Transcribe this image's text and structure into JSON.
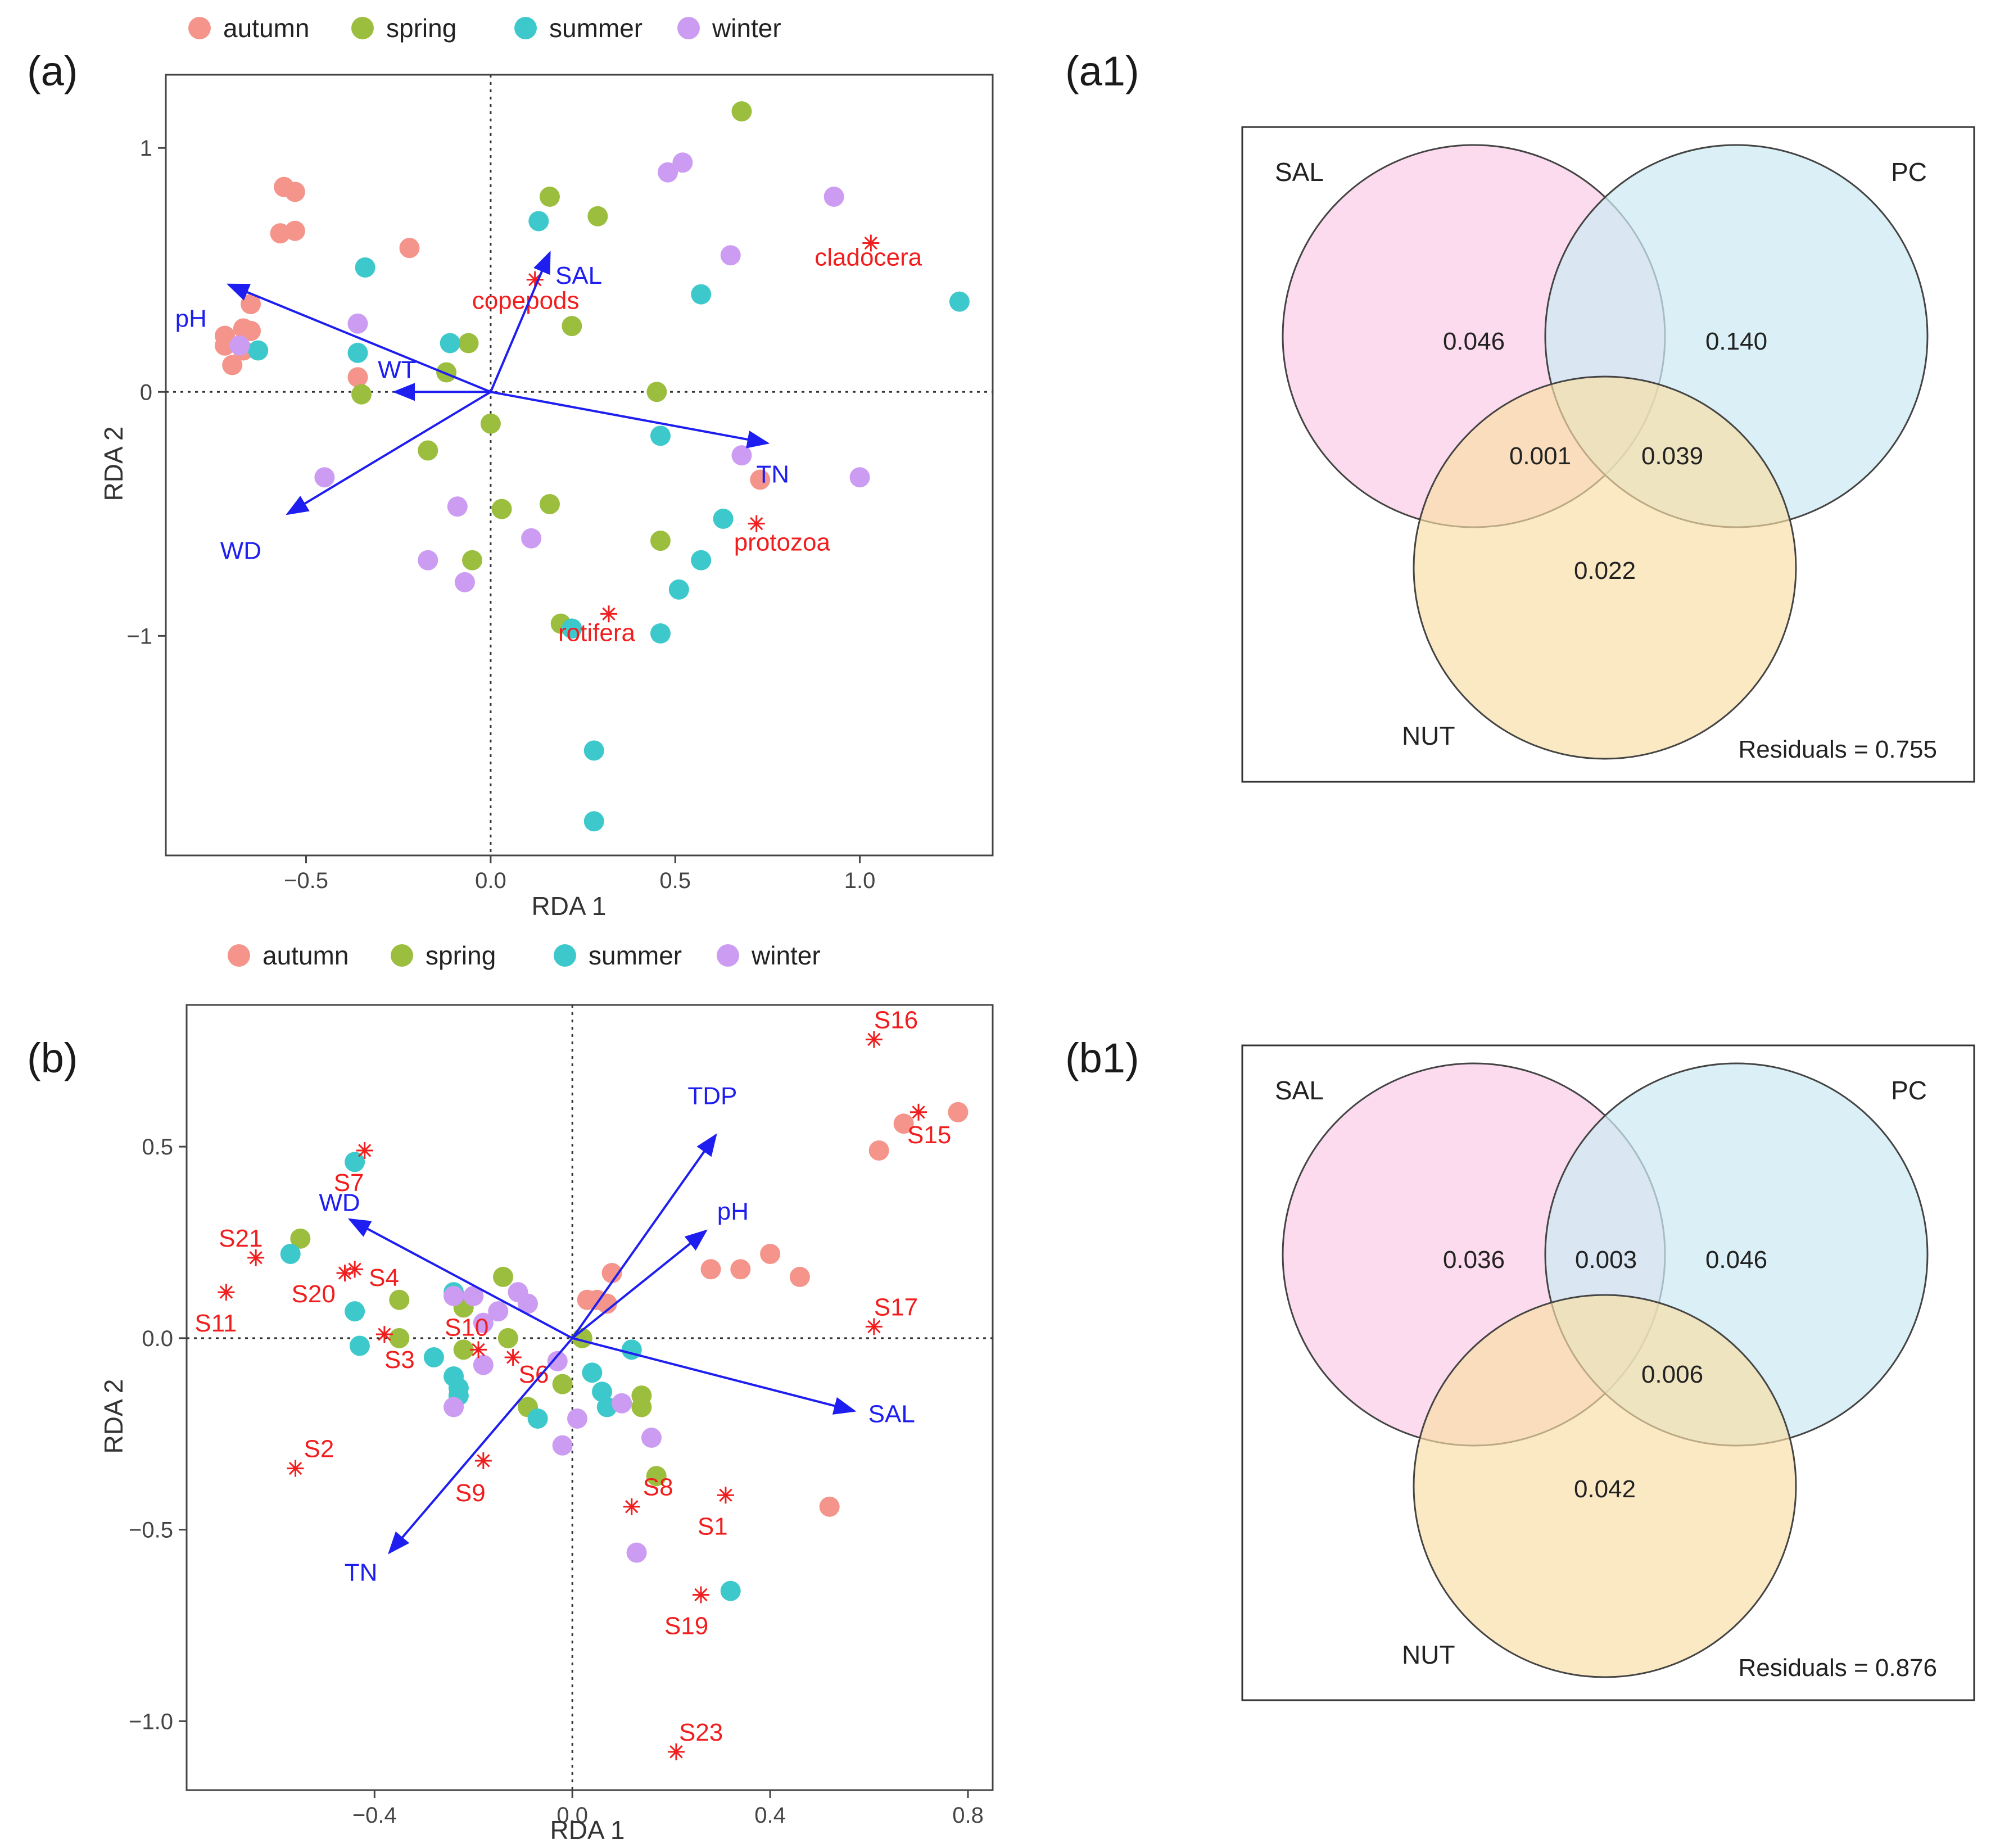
{
  "colors": {
    "autumn": "#F4948A",
    "spring": "#9CBE3E",
    "summer": "#3DC9CC",
    "winter": "#CC9CF2",
    "arrow": "#1E1EF0",
    "species": "#F01E1E",
    "sal_fill": "#F9CDE6",
    "pc_fill": "#CDEAF3",
    "nut_fill": "#F9DDA4"
  },
  "chart_data": [
    {
      "id": "a",
      "type": "scatter",
      "panel_label": "(a)",
      "xlabel": "RDA 1",
      "ylabel": "RDA 2",
      "xlim": [
        -0.88,
        1.36
      ],
      "ylim": [
        -1.9,
        1.3
      ],
      "xticks": [
        {
          "v": -0.5,
          "label": "−0.5"
        },
        {
          "v": 0.0,
          "label": "0.0"
        },
        {
          "v": 0.5,
          "label": "0.5"
        },
        {
          "v": 1.0,
          "label": "1.0"
        }
      ],
      "yticks": [
        {
          "v": 1,
          "label": "1"
        },
        {
          "v": 0,
          "label": "0"
        },
        {
          "v": -1,
          "label": "−1"
        }
      ],
      "legend": [
        "autumn",
        "spring",
        "summer",
        "winter"
      ],
      "points": [
        {
          "s": "autumn",
          "x": -0.56,
          "y": 0.84
        },
        {
          "s": "autumn",
          "x": -0.53,
          "y": 0.82
        },
        {
          "s": "autumn",
          "x": -0.57,
          "y": 0.65
        },
        {
          "s": "autumn",
          "x": -0.53,
          "y": 0.66
        },
        {
          "s": "autumn",
          "x": -0.22,
          "y": 0.59
        },
        {
          "s": "autumn",
          "x": -0.65,
          "y": 0.36
        },
        {
          "s": "autumn",
          "x": -0.67,
          "y": 0.26
        },
        {
          "s": "autumn",
          "x": -0.65,
          "y": 0.25
        },
        {
          "s": "autumn",
          "x": -0.72,
          "y": 0.23
        },
        {
          "s": "autumn",
          "x": -0.72,
          "y": 0.19
        },
        {
          "s": "autumn",
          "x": -0.67,
          "y": 0.17
        },
        {
          "s": "autumn",
          "x": -0.7,
          "y": 0.11
        },
        {
          "s": "autumn",
          "x": -0.36,
          "y": 0.06
        },
        {
          "s": "autumn",
          "x": 0.73,
          "y": -0.36
        },
        {
          "s": "spring",
          "x": 0.68,
          "y": 1.15
        },
        {
          "s": "spring",
          "x": 0.16,
          "y": 0.8
        },
        {
          "s": "spring",
          "x": 0.29,
          "y": 0.72
        },
        {
          "s": "spring",
          "x": -0.06,
          "y": 0.2
        },
        {
          "s": "spring",
          "x": 0.22,
          "y": 0.27
        },
        {
          "s": "spring",
          "x": -0.12,
          "y": 0.08
        },
        {
          "s": "spring",
          "x": -0.35,
          "y": -0.01
        },
        {
          "s": "spring",
          "x": 0.45,
          "y": 0.0
        },
        {
          "s": "spring",
          "x": 0.0,
          "y": -0.13
        },
        {
          "s": "spring",
          "x": -0.17,
          "y": -0.24
        },
        {
          "s": "spring",
          "x": 0.03,
          "y": -0.48
        },
        {
          "s": "spring",
          "x": 0.16,
          "y": -0.46
        },
        {
          "s": "spring",
          "x": 0.46,
          "y": -0.61
        },
        {
          "s": "spring",
          "x": -0.05,
          "y": -0.69
        },
        {
          "s": "spring",
          "x": 0.19,
          "y": -0.95
        },
        {
          "s": "summer",
          "x": -0.34,
          "y": 0.51
        },
        {
          "s": "summer",
          "x": 0.13,
          "y": 0.7
        },
        {
          "s": "summer",
          "x": 0.57,
          "y": 0.4
        },
        {
          "s": "summer",
          "x": 1.27,
          "y": 0.37
        },
        {
          "s": "summer",
          "x": -0.63,
          "y": 0.17
        },
        {
          "s": "summer",
          "x": -0.36,
          "y": 0.16
        },
        {
          "s": "summer",
          "x": -0.11,
          "y": 0.2
        },
        {
          "s": "summer",
          "x": 0.46,
          "y": -0.18
        },
        {
          "s": "summer",
          "x": 0.63,
          "y": -0.52
        },
        {
          "s": "summer",
          "x": 0.57,
          "y": -0.69
        },
        {
          "s": "summer",
          "x": 0.51,
          "y": -0.81
        },
        {
          "s": "summer",
          "x": 0.46,
          "y": -0.99
        },
        {
          "s": "summer",
          "x": 0.22,
          "y": -0.97
        },
        {
          "s": "summer",
          "x": 0.28,
          "y": -1.47
        },
        {
          "s": "summer",
          "x": 0.28,
          "y": -1.76
        },
        {
          "s": "winter",
          "x": 0.52,
          "y": 0.94
        },
        {
          "s": "winter",
          "x": 0.48,
          "y": 0.9
        },
        {
          "s": "winter",
          "x": 0.93,
          "y": 0.8
        },
        {
          "s": "winter",
          "x": 0.65,
          "y": 0.56
        },
        {
          "s": "winter",
          "x": -0.36,
          "y": 0.28
        },
        {
          "s": "winter",
          "x": -0.68,
          "y": 0.19
        },
        {
          "s": "winter",
          "x": 0.68,
          "y": -0.26
        },
        {
          "s": "winter",
          "x": 1.0,
          "y": -0.35
        },
        {
          "s": "winter",
          "x": -0.45,
          "y": -0.35
        },
        {
          "s": "winter",
          "x": -0.09,
          "y": -0.47
        },
        {
          "s": "winter",
          "x": 0.11,
          "y": -0.6
        },
        {
          "s": "winter",
          "x": -0.17,
          "y": -0.69
        },
        {
          "s": "winter",
          "x": -0.07,
          "y": -0.78
        }
      ],
      "arrows": [
        {
          "label": "SAL",
          "x": 0.16,
          "y": 0.57
        },
        {
          "label": "pH",
          "x": -0.71,
          "y": 0.44
        },
        {
          "label": "WT",
          "x": -0.26,
          "y": 0.0
        },
        {
          "label": "TN",
          "x": 0.75,
          "y": -0.21
        },
        {
          "label": "WD",
          "x": -0.55,
          "y": -0.5
        }
      ],
      "species": [
        {
          "label": "cladocera",
          "x": 1.03,
          "y": 0.61
        },
        {
          "label": "copepods",
          "x": 0.12,
          "y": 0.46
        },
        {
          "label": "protozoa",
          "x": 0.72,
          "y": -0.54
        },
        {
          "label": "rotifera",
          "x": 0.32,
          "y": -0.91
        }
      ]
    },
    {
      "id": "b",
      "type": "scatter",
      "panel_label": "(b)",
      "xlabel": "RDA 1",
      "ylabel": "RDA 2",
      "xlim": [
        -0.78,
        0.85
      ],
      "ylim": [
        -1.18,
        0.87
      ],
      "xticks": [
        {
          "v": -0.4,
          "label": "−0.4"
        },
        {
          "v": 0.0,
          "label": "0.0"
        },
        {
          "v": 0.4,
          "label": "0.4"
        },
        {
          "v": 0.8,
          "label": "0.8"
        }
      ],
      "yticks": [
        {
          "v": 0.5,
          "label": "0.5"
        },
        {
          "v": 0.0,
          "label": "0.0"
        },
        {
          "v": -0.5,
          "label": "−0.5"
        },
        {
          "v": -1.0,
          "label": "−1.0"
        }
      ],
      "legend": [
        "autumn",
        "spring",
        "summer",
        "winter"
      ],
      "points": [
        {
          "s": "autumn",
          "x": 0.78,
          "y": 0.59
        },
        {
          "s": "autumn",
          "x": 0.67,
          "y": 0.56
        },
        {
          "s": "autumn",
          "x": 0.62,
          "y": 0.49
        },
        {
          "s": "autumn",
          "x": 0.4,
          "y": 0.22
        },
        {
          "s": "autumn",
          "x": 0.28,
          "y": 0.18
        },
        {
          "s": "autumn",
          "x": 0.34,
          "y": 0.18
        },
        {
          "s": "autumn",
          "x": 0.46,
          "y": 0.16
        },
        {
          "s": "autumn",
          "x": 0.08,
          "y": 0.17
        },
        {
          "s": "autumn",
          "x": 0.03,
          "y": 0.1
        },
        {
          "s": "autumn",
          "x": 0.07,
          "y": 0.09
        },
        {
          "s": "autumn",
          "x": 0.05,
          "y": 0.1
        },
        {
          "s": "autumn",
          "x": 0.52,
          "y": -0.44
        },
        {
          "s": "spring",
          "x": -0.55,
          "y": 0.26
        },
        {
          "s": "spring",
          "x": -0.35,
          "y": 0.1
        },
        {
          "s": "spring",
          "x": -0.14,
          "y": 0.16
        },
        {
          "s": "spring",
          "x": -0.35,
          "y": 0.0
        },
        {
          "s": "spring",
          "x": -0.22,
          "y": 0.08
        },
        {
          "s": "spring",
          "x": -0.22,
          "y": -0.03
        },
        {
          "s": "spring",
          "x": -0.13,
          "y": 0.0
        },
        {
          "s": "spring",
          "x": 0.02,
          "y": 0.0
        },
        {
          "s": "spring",
          "x": -0.02,
          "y": -0.12
        },
        {
          "s": "spring",
          "x": -0.09,
          "y": -0.18
        },
        {
          "s": "spring",
          "x": 0.14,
          "y": -0.18
        },
        {
          "s": "spring",
          "x": 0.14,
          "y": -0.15
        },
        {
          "s": "spring",
          "x": 0.17,
          "y": -0.36
        },
        {
          "s": "summer",
          "x": -0.44,
          "y": 0.46
        },
        {
          "s": "summer",
          "x": -0.57,
          "y": 0.22
        },
        {
          "s": "summer",
          "x": -0.44,
          "y": 0.07
        },
        {
          "s": "summer",
          "x": -0.43,
          "y": -0.02
        },
        {
          "s": "summer",
          "x": -0.24,
          "y": 0.12
        },
        {
          "s": "summer",
          "x": -0.28,
          "y": -0.05
        },
        {
          "s": "summer",
          "x": -0.24,
          "y": -0.1
        },
        {
          "s": "summer",
          "x": -0.23,
          "y": -0.13
        },
        {
          "s": "summer",
          "x": -0.23,
          "y": -0.15
        },
        {
          "s": "summer",
          "x": -0.07,
          "y": -0.21
        },
        {
          "s": "summer",
          "x": 0.04,
          "y": -0.09
        },
        {
          "s": "summer",
          "x": 0.06,
          "y": -0.14
        },
        {
          "s": "summer",
          "x": 0.07,
          "y": -0.18
        },
        {
          "s": "summer",
          "x": 0.12,
          "y": -0.03
        },
        {
          "s": "summer",
          "x": 0.32,
          "y": -0.66
        },
        {
          "s": "winter",
          "x": -0.24,
          "y": 0.11
        },
        {
          "s": "winter",
          "x": -0.2,
          "y": 0.11
        },
        {
          "s": "winter",
          "x": -0.15,
          "y": 0.07
        },
        {
          "s": "winter",
          "x": -0.11,
          "y": 0.12
        },
        {
          "s": "winter",
          "x": -0.09,
          "y": 0.09
        },
        {
          "s": "winter",
          "x": -0.18,
          "y": 0.04
        },
        {
          "s": "winter",
          "x": -0.18,
          "y": -0.07
        },
        {
          "s": "winter",
          "x": -0.24,
          "y": -0.18
        },
        {
          "s": "winter",
          "x": -0.03,
          "y": -0.06
        },
        {
          "s": "winter",
          "x": 0.01,
          "y": -0.21
        },
        {
          "s": "winter",
          "x": -0.02,
          "y": -0.28
        },
        {
          "s": "winter",
          "x": 0.1,
          "y": -0.17
        },
        {
          "s": "winter",
          "x": 0.16,
          "y": -0.26
        },
        {
          "s": "winter",
          "x": 0.13,
          "y": -0.56
        }
      ],
      "arrows": [
        {
          "label": "TDP",
          "x": 0.29,
          "y": 0.53
        },
        {
          "label": "pH",
          "x": 0.27,
          "y": 0.28
        },
        {
          "label": "WD",
          "x": -0.45,
          "y": 0.31
        },
        {
          "label": "SAL",
          "x": 0.57,
          "y": -0.19
        },
        {
          "label": "TN",
          "x": -0.37,
          "y": -0.56
        }
      ],
      "species": [
        {
          "label": "S16",
          "x": 0.61,
          "y": 0.78
        },
        {
          "label": "S15",
          "x": 0.7,
          "y": 0.59
        },
        {
          "label": "S17",
          "x": 0.61,
          "y": 0.03
        },
        {
          "label": "S7",
          "x": -0.42,
          "y": 0.49
        },
        {
          "label": "S21",
          "x": -0.64,
          "y": 0.21
        },
        {
          "label": "S4",
          "x": -0.44,
          "y": 0.18
        },
        {
          "label": "S20",
          "x": -0.46,
          "y": 0.17
        },
        {
          "label": "S11",
          "x": -0.7,
          "y": 0.12
        },
        {
          "label": "S3",
          "x": -0.38,
          "y": 0.01
        },
        {
          "label": "S10",
          "x": -0.19,
          "y": -0.03
        },
        {
          "label": "S6",
          "x": -0.12,
          "y": -0.05
        },
        {
          "label": "S2",
          "x": -0.56,
          "y": -0.34
        },
        {
          "label": "S9",
          "x": -0.18,
          "y": -0.32
        },
        {
          "label": "S8",
          "x": 0.12,
          "y": -0.44
        },
        {
          "label": "S1",
          "x": 0.31,
          "y": -0.41
        },
        {
          "label": "S19",
          "x": 0.26,
          "y": -0.67
        },
        {
          "label": "S23",
          "x": 0.21,
          "y": -1.08
        }
      ]
    },
    {
      "id": "a1",
      "type": "venn",
      "panel_label": "(a1)",
      "sets": [
        "SAL",
        "PC",
        "NUT"
      ],
      "regions": {
        "SAL_only": "0.046",
        "PC_only": "0.140",
        "SAL_NUT": "0.001",
        "PC_NUT": "0.039",
        "NUT_only": "0.022"
      },
      "residuals_label": "Residuals = 0.755"
    },
    {
      "id": "b1",
      "type": "venn",
      "panel_label": "(b1)",
      "sets": [
        "SAL",
        "PC",
        "NUT"
      ],
      "regions": {
        "SAL_only": "0.036",
        "SAL_PC": "0.003",
        "PC_only": "0.046",
        "PC_NUT": "0.006",
        "NUT_only": "0.042"
      },
      "residuals_label": "Residuals = 0.876"
    }
  ]
}
